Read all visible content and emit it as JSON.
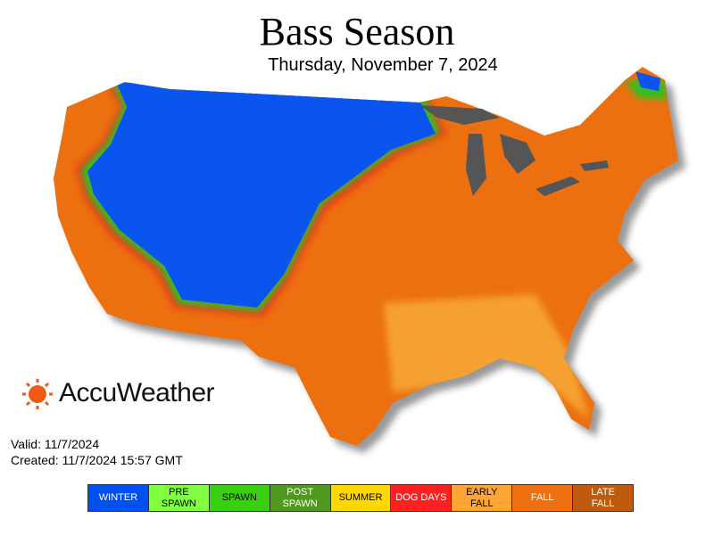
{
  "title": "Bass Season",
  "subtitle": "Thursday, November 7, 2024",
  "brand": "AccuWeather",
  "valid": "Valid: 11/7/2024",
  "created": "Created: 11/7/2024 15:57 GMT",
  "legend": [
    {
      "label": "WINTER",
      "color": "#0050f0",
      "text_color": "#ffffff"
    },
    {
      "label": "PRE\nSPAWN",
      "color": "#80ff40",
      "text_color": "#000000"
    },
    {
      "label": "SPAWN",
      "color": "#38d010",
      "text_color": "#000000"
    },
    {
      "label": "POST\nSPAWN",
      "color": "#4f9a1c",
      "text_color": "#ffffff"
    },
    {
      "label": "SUMMER",
      "color": "#ffd800",
      "text_color": "#000000"
    },
    {
      "label": "DOG DAYS",
      "color": "#ff2020",
      "text_color": "#ffffff"
    },
    {
      "label": "EARLY\nFALL",
      "color": "#ffa535",
      "text_color": "#000000"
    },
    {
      "label": "FALL",
      "color": "#ee7010",
      "text_color": "#ffffff"
    },
    {
      "label": "LATE\nFALL",
      "color": "#c05a0c",
      "text_color": "#ffffff"
    }
  ]
}
